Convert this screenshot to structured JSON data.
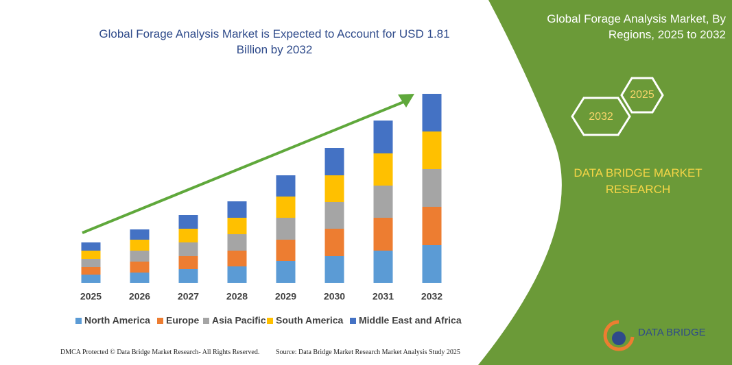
{
  "chart_data": {
    "type": "bar",
    "stacked": true,
    "title": "Global Forage Analysis Market is Expected to Account for USD 1.81 Billion by 2032",
    "categories": [
      "2025",
      "2026",
      "2027",
      "2028",
      "2029",
      "2030",
      "2031",
      "2032"
    ],
    "series": [
      {
        "name": "North America",
        "color": "#5b9bd5",
        "values": [
          12,
          15,
          20,
          24,
          32,
          39,
          47,
          55
        ]
      },
      {
        "name": "Europe",
        "color": "#ed7d31",
        "values": [
          11,
          16,
          19,
          23,
          31,
          40,
          48,
          56
        ]
      },
      {
        "name": "Asia Pacific",
        "color": "#a5a5a5",
        "values": [
          12,
          16,
          20,
          24,
          32,
          39,
          47,
          55
        ]
      },
      {
        "name": "South America",
        "color": "#ffc000",
        "values": [
          12,
          16,
          20,
          24,
          31,
          39,
          47,
          55
        ]
      },
      {
        "name": "Middle East and Africa",
        "color": "#4472c4",
        "values": [
          12,
          15,
          20,
          24,
          31,
          40,
          48,
          55
        ]
      }
    ],
    "ylim": [
      0,
      290
    ],
    "legend": "bottom"
  },
  "panel": {
    "title": "Global Forage Analysis Market, By Regions, 2025 to 2032",
    "hex_top": "2025",
    "hex_bottom": "2032",
    "brand": "DATA BRIDGE MARKET RESEARCH"
  },
  "logo": "DATA BRIDGE",
  "footer": {
    "left": "DMCA Protected © Data Bridge Market Research- All Rights Reserved.",
    "right": "Source: Data Bridge Market Research Market Analysis Study 2025"
  }
}
